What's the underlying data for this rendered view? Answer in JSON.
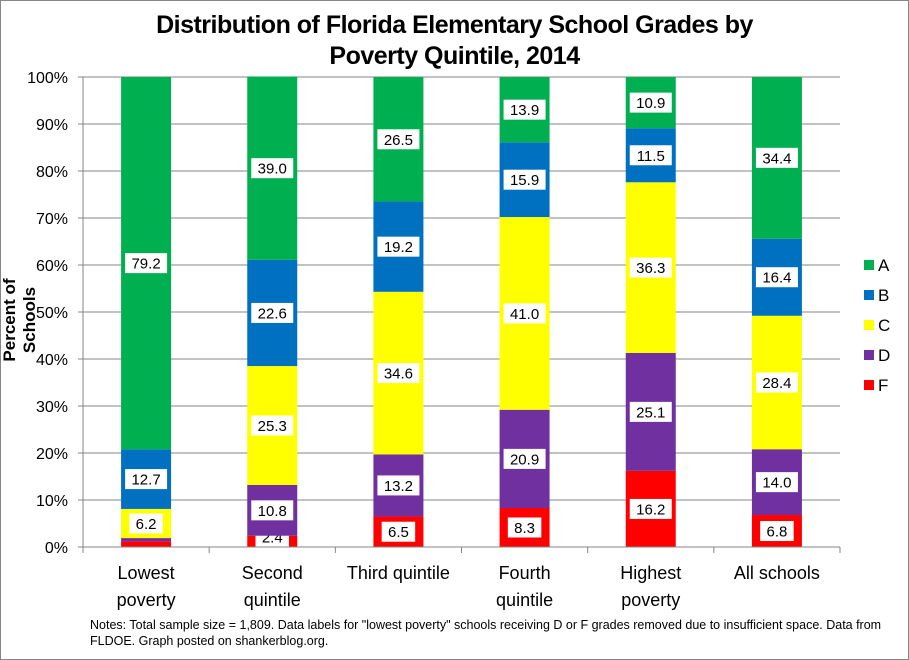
{
  "chart_data": {
    "type": "bar",
    "stacked": true,
    "title": "Distribution of Florida Elementary School Grades by Poverty Quintile, 2014",
    "title_lines": [
      "Distribution of Florida Elementary School Grades by",
      "Poverty Quintile, 2014"
    ],
    "xlabel": "",
    "ylabel": "Percent of Schools",
    "ylim": [
      0,
      100
    ],
    "yticks": [
      "0%",
      "10%",
      "20%",
      "30%",
      "40%",
      "50%",
      "60%",
      "70%",
      "80%",
      "90%",
      "100%"
    ],
    "grid": true,
    "legend_position": "right",
    "categories": [
      [
        "Lowest",
        "poverty"
      ],
      [
        "Second",
        "quintile"
      ],
      [
        "Third quintile"
      ],
      [
        "Fourth",
        "quintile"
      ],
      [
        "Highest",
        "poverty"
      ],
      [
        "All schools"
      ]
    ],
    "series": [
      {
        "name": "F",
        "color": "#FF0000",
        "values": [
          1.2,
          2.4,
          6.5,
          8.3,
          16.2,
          6.8
        ],
        "labels": [
          "",
          "2.4",
          "6.5",
          "8.3",
          "16.2",
          "6.8"
        ]
      },
      {
        "name": "D",
        "color": "#7030A0",
        "values": [
          0.7,
          10.8,
          13.2,
          20.9,
          25.1,
          14.0
        ],
        "labels": [
          "",
          "10.8",
          "13.2",
          "20.9",
          "25.1",
          "14.0"
        ]
      },
      {
        "name": "C",
        "color": "#FFFF00",
        "values": [
          6.2,
          25.3,
          34.6,
          41.0,
          36.3,
          28.4
        ],
        "labels": [
          "6.2",
          "25.3",
          "34.6",
          "41.0",
          "36.3",
          "28.4"
        ]
      },
      {
        "name": "B",
        "color": "#0070C0",
        "values": [
          12.7,
          22.6,
          19.2,
          15.9,
          11.5,
          16.4
        ],
        "labels": [
          "12.7",
          "22.6",
          "19.2",
          "15.9",
          "11.5",
          "16.4"
        ]
      },
      {
        "name": "A",
        "color": "#00B050",
        "values": [
          79.2,
          39.0,
          26.5,
          13.9,
          10.9,
          34.4
        ],
        "labels": [
          "79.2",
          "39.0",
          "26.5",
          "13.9",
          "10.9",
          "34.4"
        ]
      }
    ],
    "legend_order": [
      "A",
      "B",
      "C",
      "D",
      "F"
    ],
    "notes": "Notes: Total sample size = 1,809. Data labels for \"lowest poverty\" schools receiving D or F grades removed due to insufficient space. Data from FLDOE. Graph posted on shankerblog.org."
  }
}
